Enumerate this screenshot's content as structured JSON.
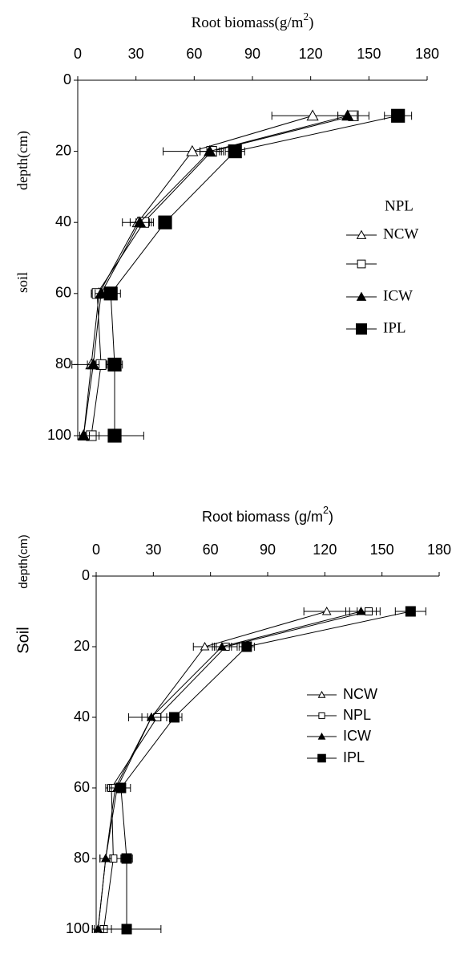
{
  "chart_data": [
    {
      "type": "line",
      "orientation": "horizontal",
      "x_label": {
        "text": "Root biomass(g/m",
        "sup": "2",
        "end": ")"
      },
      "y_label": [
        "soil",
        "depth(cm)"
      ],
      "x": [
        10,
        20,
        40,
        60,
        80,
        100
      ],
      "xlim": [
        0,
        180
      ],
      "xticks": [
        0,
        30,
        60,
        90,
        120,
        150,
        180
      ],
      "ylim": [
        0,
        100
      ],
      "yticks": [
        0,
        20,
        40,
        60,
        80,
        100
      ],
      "series": [
        {
          "name": "NCW",
          "marker": "triangle-open",
          "color": "#000",
          "values": [
            121,
            59,
            31,
            11,
            7,
            3
          ],
          "errors": [
            21,
            15,
            8,
            4,
            10,
            2
          ]
        },
        {
          "name": "NPL",
          "marker": "square-open",
          "color": "#000",
          "values": [
            142,
            69,
            34,
            10,
            12,
            7
          ],
          "errors": [
            8,
            6,
            4,
            3,
            3,
            4
          ]
        },
        {
          "name": "ICW",
          "marker": "triangle",
          "color": "#000",
          "values": [
            139,
            68,
            32,
            12,
            8,
            3
          ],
          "errors": [
            5,
            5,
            5,
            3,
            3,
            3
          ]
        },
        {
          "name": "IPL",
          "marker": "square",
          "color": "#000",
          "values": [
            165,
            81,
            45,
            17,
            19,
            19
          ],
          "errors": [
            7,
            5,
            3,
            5,
            4,
            15
          ]
        }
      ]
    },
    {
      "type": "line",
      "orientation": "horizontal",
      "x_label": {
        "text": "Root biomass (g/m",
        "sup": "2",
        "end": ")"
      },
      "y_label": [
        "Soil",
        "depth(cm)"
      ],
      "x": [
        10,
        20,
        40,
        60,
        80,
        100
      ],
      "xlim": [
        0,
        180
      ],
      "xticks": [
        0,
        30,
        60,
        90,
        120,
        150,
        180
      ],
      "ylim": [
        0,
        100
      ],
      "yticks": [
        0,
        20,
        40,
        60,
        80,
        100
      ],
      "series": [
        {
          "name": "NCW",
          "marker": "triangle-open",
          "color": "#000",
          "values": [
            121,
            57,
            29,
            10,
            5,
            1
          ],
          "errors": [
            12,
            6,
            12,
            4,
            3,
            2
          ]
        },
        {
          "name": "NPL",
          "marker": "square-open",
          "color": "#000",
          "values": [
            143,
            68,
            32,
            8,
            9,
            4
          ],
          "errors": [
            6,
            6,
            5,
            3,
            4,
            4
          ]
        },
        {
          "name": "ICW",
          "marker": "triangle",
          "color": "#000",
          "values": [
            139,
            66,
            29,
            11,
            5,
            1
          ],
          "errors": [
            8,
            5,
            5,
            4,
            3,
            3
          ]
        },
        {
          "name": "IPL",
          "marker": "square",
          "color": "#000",
          "values": [
            165,
            79,
            41,
            13,
            16,
            16
          ],
          "errors": [
            8,
            4,
            4,
            5,
            3,
            18
          ]
        }
      ]
    }
  ]
}
